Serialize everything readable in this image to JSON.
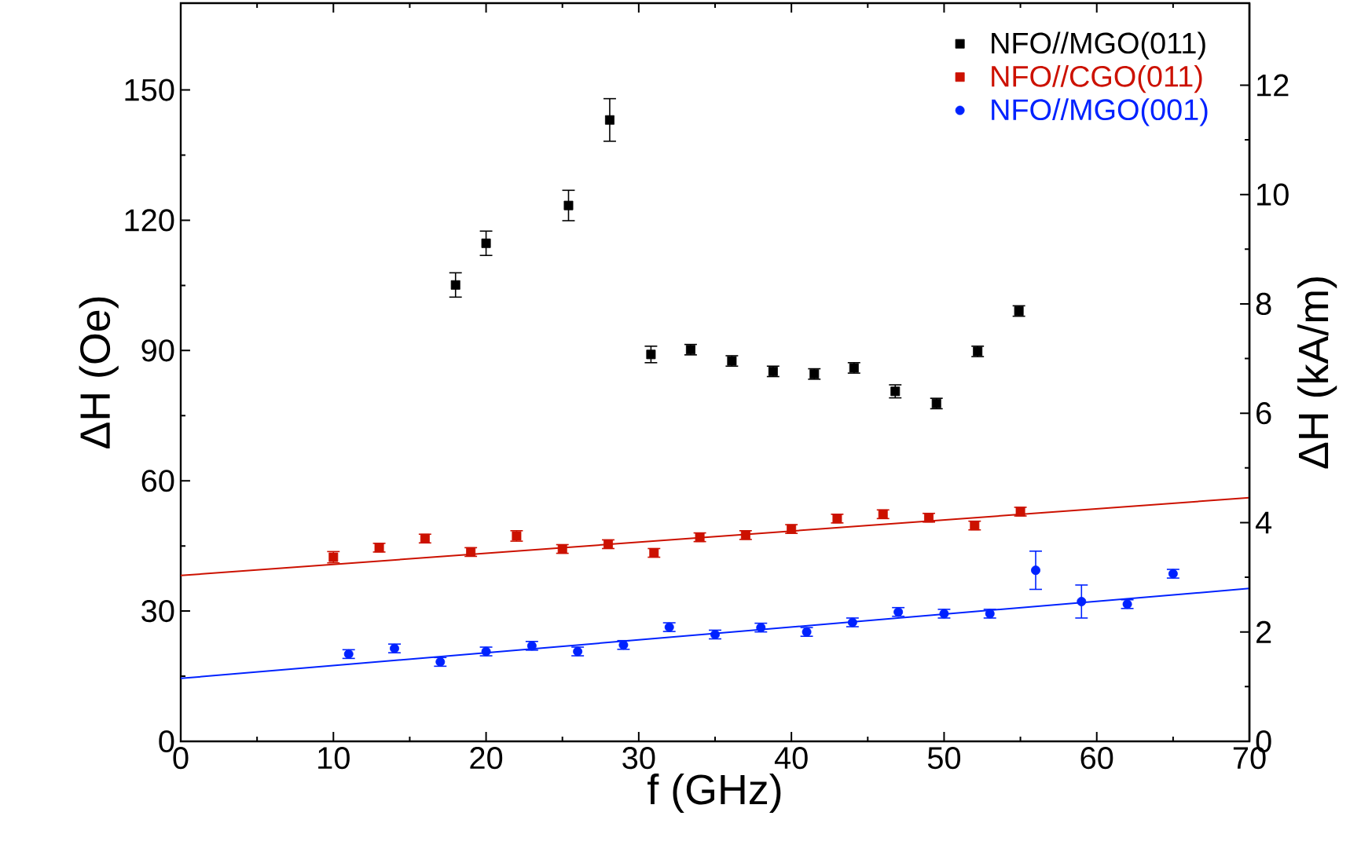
{
  "chart_data": {
    "type": "scatter",
    "xlabel": "f (GHz)",
    "ylabel": "ΔH (Oe)",
    "y2label": "ΔH (kA/m)",
    "xlim": [
      0,
      70
    ],
    "xticks": [
      0,
      10,
      20,
      30,
      40,
      50,
      60,
      70
    ],
    "ylim": [
      0,
      170
    ],
    "yticks": [
      0,
      30,
      60,
      90,
      120,
      150
    ],
    "y2lim": [
      0,
      13.5
    ],
    "y2ticks": [
      0,
      2,
      4,
      6,
      8,
      10,
      12
    ],
    "legend": "top right",
    "series": [
      {
        "name": "NFO//MGO(011)",
        "color": "#000000",
        "marker": "square",
        "x": [
          18,
          20,
          25.4,
          28.1,
          30.8,
          33.4,
          36.1,
          38.8,
          41.5,
          44.1,
          46.8,
          49.5,
          52.2,
          54.9
        ],
        "values": [
          105.1,
          114.7,
          123.4,
          143.1,
          89.1,
          90.2,
          87.6,
          85.2,
          84.6,
          86.0,
          80.6,
          77.8,
          89.8,
          99.1
        ],
        "errors": [
          2.8,
          2.8,
          3.5,
          4.9,
          1.9,
          1.2,
          1.2,
          1.2,
          1.2,
          1.2,
          1.5,
          1.2,
          1.2,
          1.2
        ]
      },
      {
        "name": "NFO//CGO(011)",
        "color": "#cc1100",
        "marker": "square",
        "x": [
          10,
          13,
          16,
          19,
          22,
          25,
          28,
          31,
          34,
          37,
          40,
          43,
          46,
          49,
          52,
          55
        ],
        "values": [
          42.4,
          44.6,
          46.7,
          43.6,
          47.3,
          44.3,
          45.4,
          43.4,
          47.0,
          47.5,
          48.9,
          51.3,
          52.3,
          51.5,
          49.7,
          52.9
        ],
        "errors": [
          1.3,
          1.0,
          1.0,
          1.0,
          1.2,
          1.0,
          1.0,
          1.0,
          1.0,
          1.0,
          1.0,
          1.0,
          1.0,
          1.0,
          1.0,
          1.0
        ]
      },
      {
        "name": "NFO//MGO(001)",
        "color": "#0022ff",
        "marker": "circle",
        "x": [
          11,
          14,
          17,
          20,
          23,
          26,
          29,
          32,
          35,
          38,
          41,
          44,
          47,
          50,
          53,
          56,
          59,
          62,
          65
        ],
        "values": [
          20.1,
          21.4,
          18.3,
          20.7,
          22.0,
          20.7,
          22.2,
          26.3,
          24.6,
          26.2,
          25.2,
          27.4,
          29.8,
          29.4,
          29.4,
          39.4,
          32.2,
          31.6,
          38.6
        ],
        "errors": [
          1.0,
          1.0,
          1.0,
          1.0,
          1.0,
          1.0,
          1.0,
          1.0,
          1.0,
          1.0,
          1.0,
          1.0,
          1.0,
          1.0,
          1.0,
          4.4,
          3.8,
          1.0,
          1.0
        ]
      },
      {
        "color": "#cc1100",
        "type": "line",
        "line_style": "solid",
        "x": [
          0,
          70
        ],
        "values": [
          38.2,
          56.1
        ]
      },
      {
        "color": "#0022ff",
        "type": "line",
        "line_style": "solid",
        "x": [
          0,
          70
        ],
        "values": [
          14.5,
          35.2
        ]
      }
    ]
  }
}
